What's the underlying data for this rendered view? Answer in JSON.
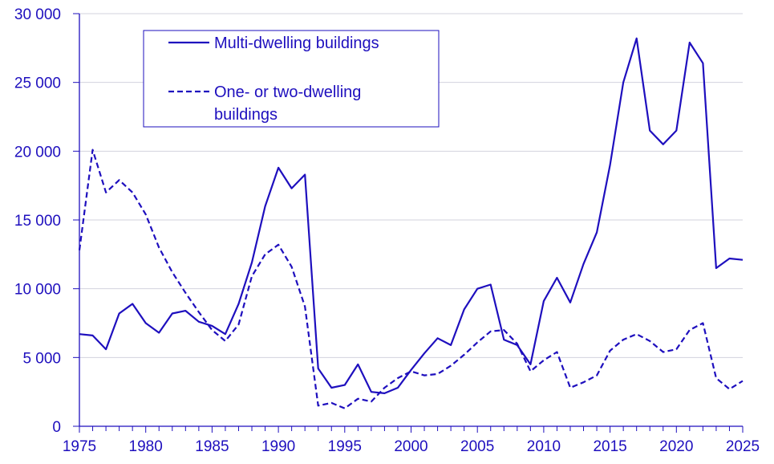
{
  "colors": {
    "series": "#1e0fbe",
    "grid": "#d3d3de",
    "axis": "#1e0fbe",
    "text": "#1e0fbe"
  },
  "chart_data": {
    "type": "line",
    "title": "",
    "xlabel": "",
    "ylabel": "",
    "xlim": [
      1975,
      2025
    ],
    "ylim": [
      0,
      30000
    ],
    "x_ticks": [
      1975,
      1980,
      1985,
      1990,
      1995,
      2000,
      2005,
      2010,
      2015,
      2020,
      2025
    ],
    "x_tick_labels": [
      "1975",
      "1980",
      "1985",
      "1990",
      "1995",
      "2000",
      "2005",
      "2010",
      "2015",
      "2020",
      "2025"
    ],
    "y_ticks": [
      0,
      5000,
      10000,
      15000,
      20000,
      25000,
      30000
    ],
    "y_tick_labels": [
      "0",
      "5 000",
      "10 000",
      "15 000",
      "20 000",
      "25 000",
      "30 000"
    ],
    "grid": "horizontal",
    "legend_position": "top-left",
    "x": [
      1975,
      1976,
      1977,
      1978,
      1979,
      1980,
      1981,
      1982,
      1983,
      1984,
      1985,
      1986,
      1987,
      1988,
      1989,
      1990,
      1991,
      1992,
      1993,
      1994,
      1995,
      1996,
      1997,
      1998,
      1999,
      2000,
      2001,
      2002,
      2003,
      2004,
      2005,
      2006,
      2007,
      2008,
      2009,
      2010,
      2011,
      2012,
      2013,
      2014,
      2015,
      2016,
      2017,
      2018,
      2019,
      2020,
      2021,
      2022,
      2023,
      2024,
      2025
    ],
    "series": [
      {
        "name": "Multi-dwelling buildings",
        "style": "solid",
        "values": [
          6700,
          6600,
          5600,
          8200,
          8900,
          7500,
          6800,
          8200,
          8400,
          7600,
          7300,
          6700,
          8900,
          11900,
          16000,
          18800,
          17300,
          18300,
          4200,
          2800,
          3000,
          4500,
          2500,
          2400,
          2800,
          4100,
          5300,
          6400,
          5900,
          8500,
          10000,
          10300,
          6300,
          5900,
          4500,
          9100,
          10800,
          9000,
          11800,
          14100,
          19000,
          25000,
          28200,
          21500,
          20500,
          21500,
          27900,
          26400,
          11500,
          12200,
          12100
        ]
      },
      {
        "name": "One- or two-dwelling buildings",
        "name_lines": [
          "One- or two-dwelling",
          "buildings"
        ],
        "style": "dashed",
        "values": [
          12800,
          20100,
          17000,
          17900,
          17000,
          15400,
          13000,
          11200,
          9700,
          8300,
          7000,
          6200,
          7400,
          10900,
          12500,
          13200,
          11600,
          8700,
          1500,
          1700,
          1300,
          2000,
          1800,
          2800,
          3500,
          4000,
          3700,
          3800,
          4400,
          5200,
          6100,
          6900,
          7000,
          6000,
          4000,
          4800,
          5400,
          2800,
          3200,
          3700,
          5500,
          6300,
          6700,
          6200,
          5400,
          5600,
          7000,
          7500,
          3500,
          2700,
          3300
        ]
      }
    ]
  }
}
